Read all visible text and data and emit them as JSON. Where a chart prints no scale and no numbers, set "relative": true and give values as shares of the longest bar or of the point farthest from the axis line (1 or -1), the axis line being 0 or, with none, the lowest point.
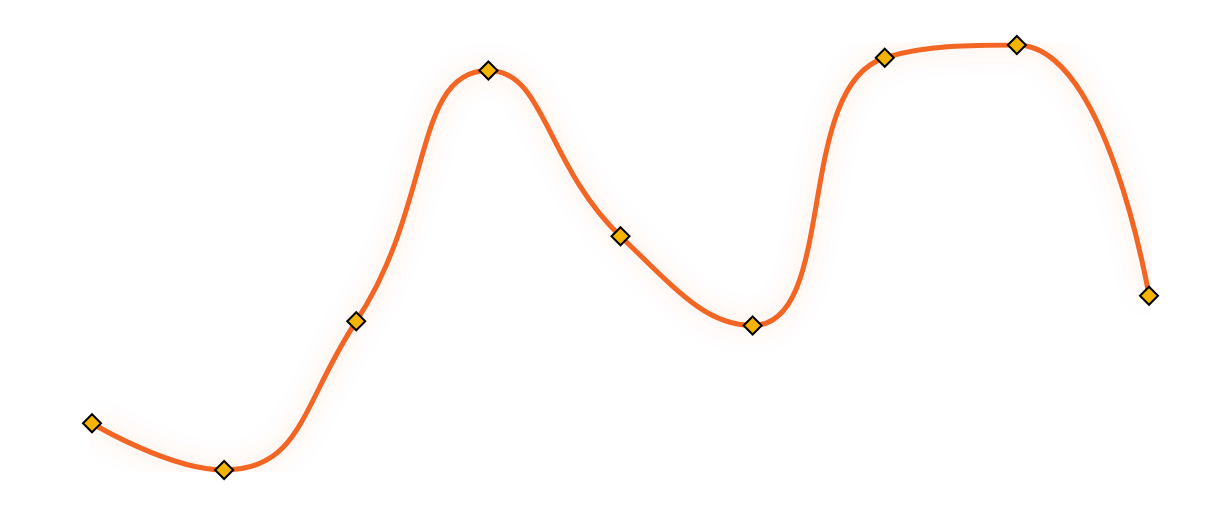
{
  "chart_data": {
    "type": "line",
    "relative": true,
    "categories": [
      null,
      null,
      null,
      null,
      null,
      null,
      null,
      null,
      null
    ],
    "marker": "diamond",
    "line_style": "solid",
    "grid": false,
    "series": [
      {
        "color": "#f26522",
        "colors": [
          "#f5b400",
          "#f5b400",
          "#f5b400",
          "#f5b400",
          "#f5b400",
          "#f5b400",
          "#f5b400",
          "#f5b400",
          "#f5b400"
        ],
        "values": [
          0.11,
          0,
          0.35,
          0.94,
          0.55,
          0.34,
          0.97,
          1,
          0.41
        ]
      }
    ]
  }
}
